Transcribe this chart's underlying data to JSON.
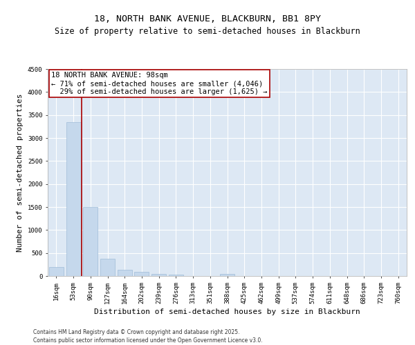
{
  "title_line1": "18, NORTH BANK AVENUE, BLACKBURN, BB1 8PY",
  "title_line2": "Size of property relative to semi-detached houses in Blackburn",
  "xlabel": "Distribution of semi-detached houses by size in Blackburn",
  "ylabel": "Number of semi-detached properties",
  "categories": [
    "16sqm",
    "53sqm",
    "90sqm",
    "127sqm",
    "164sqm",
    "202sqm",
    "239sqm",
    "276sqm",
    "313sqm",
    "351sqm",
    "388sqm",
    "425sqm",
    "462sqm",
    "499sqm",
    "537sqm",
    "574sqm",
    "611sqm",
    "648sqm",
    "686sqm",
    "723sqm",
    "760sqm"
  ],
  "values": [
    200,
    3350,
    1500,
    370,
    140,
    85,
    45,
    28,
    0,
    0,
    50,
    0,
    0,
    0,
    0,
    0,
    0,
    0,
    0,
    0,
    0
  ],
  "bar_color": "#c5d8ec",
  "bar_edge_color": "#a0bcd8",
  "vline_color": "#aa0000",
  "annotation_text": "18 NORTH BANK AVENUE: 98sqm\n← 71% of semi-detached houses are smaller (4,046)\n  29% of semi-detached houses are larger (1,625) →",
  "annotation_box_edge_color": "#aa0000",
  "ylim": [
    0,
    4500
  ],
  "yticks": [
    0,
    500,
    1000,
    1500,
    2000,
    2500,
    3000,
    3500,
    4000,
    4500
  ],
  "background_color": "#dde8f4",
  "grid_color": "#ffffff",
  "footer_text": "Contains HM Land Registry data © Crown copyright and database right 2025.\nContains public sector information licensed under the Open Government Licence v3.0.",
  "title_fontsize": 9.5,
  "subtitle_fontsize": 8.5,
  "axis_label_fontsize": 8,
  "tick_fontsize": 6.5,
  "annotation_fontsize": 7.5,
  "footer_fontsize": 5.5
}
